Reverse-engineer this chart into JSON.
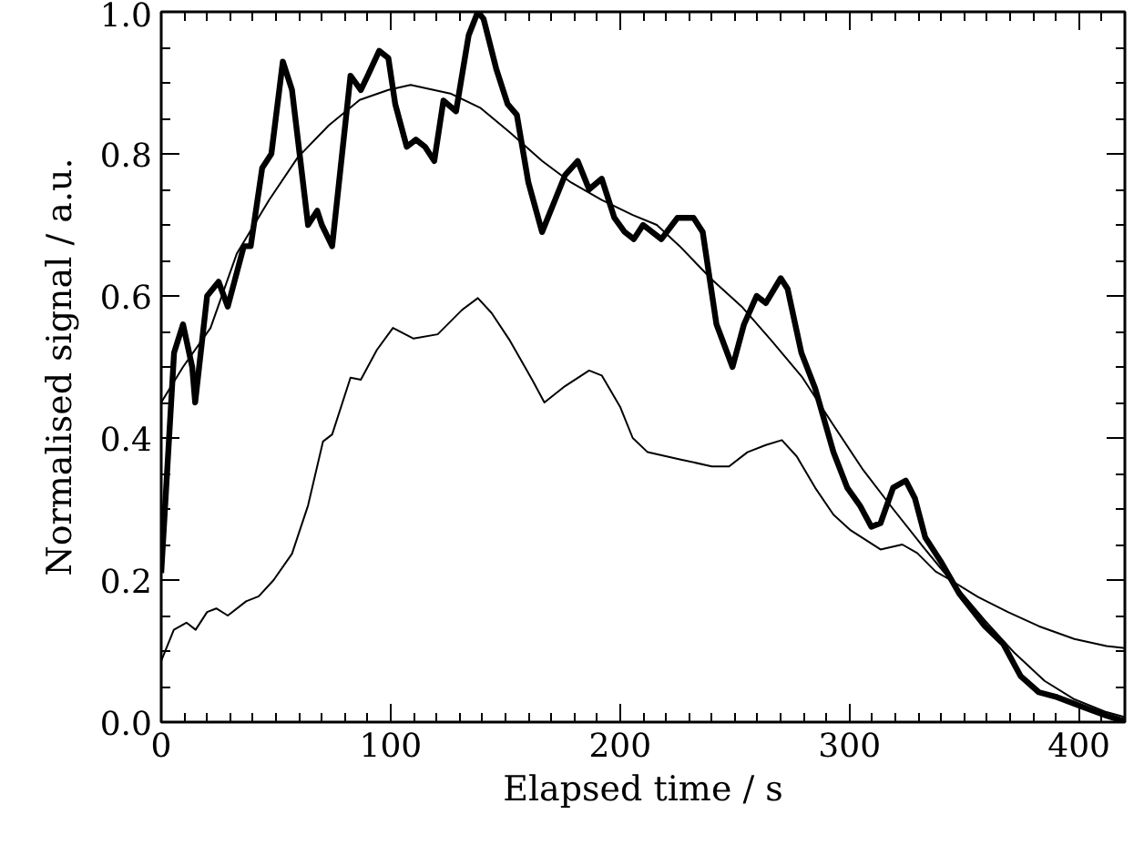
{
  "chart_data": {
    "type": "line",
    "xlabel": "Elapsed time / s",
    "ylabel": "Normalised signal / a.u.",
    "xlim": [
      0,
      420
    ],
    "ylim": [
      0,
      1.0
    ],
    "xticks": [
      0,
      100,
      200,
      300,
      400
    ],
    "yticks": [
      {
        "value": 0,
        "label": "0.0"
      },
      0.2,
      0.4,
      0.6,
      0.8,
      {
        "value": 1.0,
        "label": "1.0"
      }
    ],
    "grid": false,
    "marker": "none",
    "line_style": "solid",
    "series": [
      {
        "color": "#000000",
        "x": [
          0,
          5.6,
          9.5,
          13.5,
          14.8,
          20,
          25,
          29,
          36,
          39,
          44,
          48,
          53,
          57,
          64,
          68,
          70,
          74.5,
          82.5,
          87,
          90,
          95,
          99,
          102,
          107,
          111,
          115,
          119,
          123,
          128.5,
          134,
          138,
          140.5,
          146,
          151,
          155,
          160,
          166,
          171,
          176,
          181.5,
          186.5,
          192,
          197.5,
          202,
          206,
          210,
          218,
          225,
          232,
          236,
          242,
          249,
          254,
          259.5,
          263.5,
          270,
          273,
          277,
          279,
          285,
          293,
          299,
          304.5,
          309.5,
          313.5,
          319,
          324.5,
          328.5,
          333,
          340,
          348,
          359,
          367,
          374.5,
          382.5,
          390.5,
          401,
          412,
          420
        ],
        "values": [
          0.21,
          0.52,
          0.56,
          0.5,
          0.45,
          0.6,
          0.62,
          0.585,
          0.67,
          0.67,
          0.78,
          0.8,
          0.93,
          0.89,
          0.7,
          0.72,
          0.7,
          0.67,
          0.91,
          0.89,
          0.91,
          0.945,
          0.935,
          0.87,
          0.81,
          0.82,
          0.81,
          0.79,
          0.875,
          0.86,
          0.967,
          1.0,
          0.99,
          0.92,
          0.87,
          0.855,
          0.76,
          0.69,
          0.73,
          0.77,
          0.79,
          0.75,
          0.765,
          0.71,
          0.69,
          0.68,
          0.7,
          0.68,
          0.71,
          0.71,
          0.69,
          0.56,
          0.5,
          0.56,
          0.6,
          0.59,
          0.625,
          0.61,
          0.55,
          0.52,
          0.47,
          0.38,
          0.33,
          0.305,
          0.275,
          0.28,
          0.33,
          0.34,
          0.315,
          0.26,
          0.225,
          0.18,
          0.135,
          0.11,
          0.065,
          0.042,
          0.035,
          0.022,
          0.009,
          0.001
        ]
      },
      {
        "color": "#000000",
        "x": [
          0,
          9.5,
          21.5,
          33,
          47,
          59.5,
          73,
          86.5,
          99,
          108.7,
          126,
          139,
          152,
          166,
          178.5,
          192,
          205.5,
          216,
          226,
          240,
          253,
          266,
          279.5,
          293,
          305.5,
          319,
          332.5,
          344,
          359,
          372,
          385,
          398,
          412,
          420
        ],
        "values": [
          0.45,
          0.5,
          0.555,
          0.66,
          0.735,
          0.795,
          0.84,
          0.876,
          0.89,
          0.897,
          0.885,
          0.865,
          0.83,
          0.79,
          0.76,
          0.735,
          0.714,
          0.7,
          0.67,
          0.623,
          0.585,
          0.537,
          0.485,
          0.418,
          0.357,
          0.3,
          0.245,
          0.2,
          0.143,
          0.097,
          0.058,
          0.032,
          0.014,
          0.007
        ]
      },
      {
        "color": "#000000",
        "x": [
          0,
          5.5,
          11,
          15,
          20,
          24,
          29,
          37,
          42.5,
          49,
          57,
          64,
          70.5,
          74.5,
          82.5,
          87,
          94,
          101,
          110,
          120.5,
          131,
          138,
          144,
          152,
          158,
          162,
          167,
          176,
          186.5,
          192,
          200,
          205.5,
          212,
          226,
          240,
          247.5,
          255.5,
          263.5,
          270.5,
          277,
          285,
          293,
          300.5,
          313.5,
          323,
          329.5,
          337.5,
          344,
          356,
          369,
          382.5,
          398,
          412,
          420
        ],
        "values": [
          0.086,
          0.13,
          0.14,
          0.13,
          0.155,
          0.16,
          0.15,
          0.17,
          0.177,
          0.2,
          0.237,
          0.305,
          0.395,
          0.405,
          0.485,
          0.482,
          0.524,
          0.555,
          0.54,
          0.546,
          0.58,
          0.597,
          0.576,
          0.537,
          0.503,
          0.48,
          0.45,
          0.473,
          0.495,
          0.488,
          0.444,
          0.4,
          0.38,
          0.37,
          0.36,
          0.36,
          0.38,
          0.39,
          0.397,
          0.374,
          0.33,
          0.292,
          0.27,
          0.243,
          0.25,
          0.238,
          0.212,
          0.2,
          0.176,
          0.155,
          0.135,
          0.117,
          0.107,
          0.104
        ]
      }
    ]
  }
}
